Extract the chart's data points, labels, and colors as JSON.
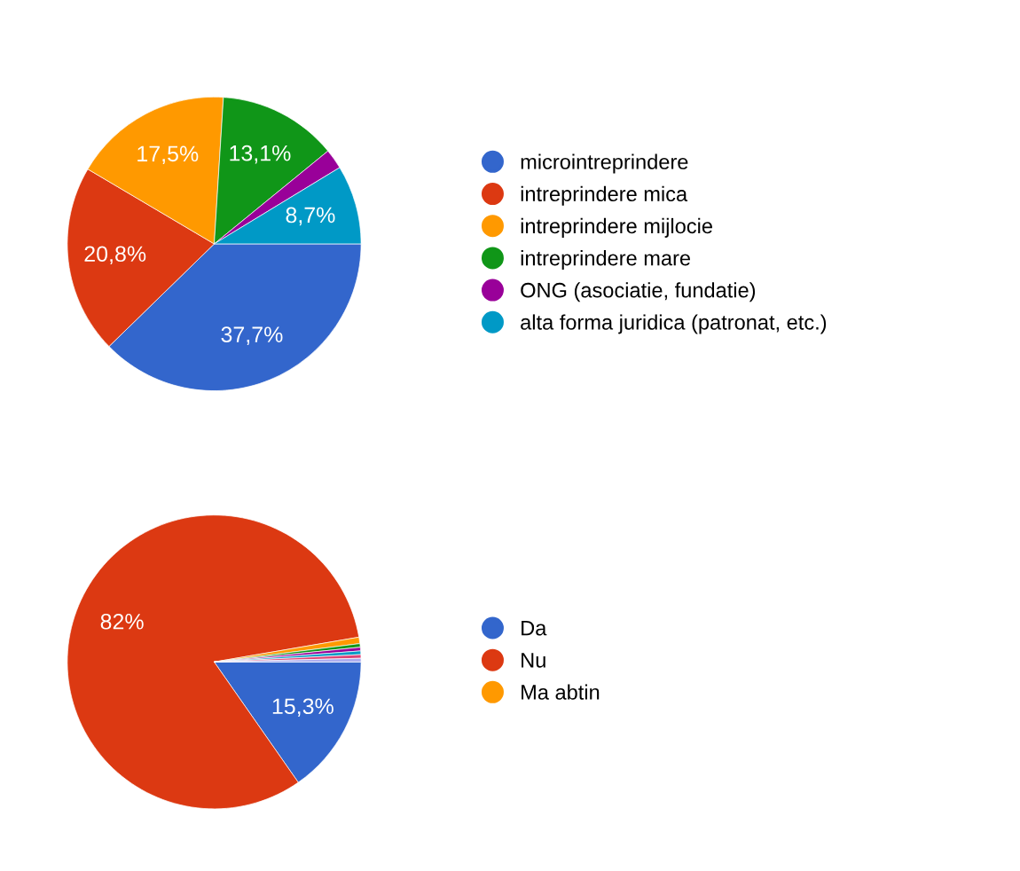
{
  "chart_data": [
    {
      "type": "pie",
      "categories": [
        "microintreprindere",
        "intreprindere mica",
        "intreprindere mijlocie",
        "intreprindere mare",
        "ONG (asociatie, fundatie)",
        "alta forma juridica (patronat, etc.)"
      ],
      "values": [
        37.7,
        20.8,
        17.5,
        13.1,
        2.2,
        8.7
      ],
      "value_labels": [
        "37,7%",
        "20,8%",
        "17,5%",
        "13,1%",
        null,
        "8,7%"
      ],
      "colors": [
        "#3366cc",
        "#dc3912",
        "#ff9900",
        "#109618",
        "#990099",
        "#0099c6"
      ],
      "legend": "right"
    },
    {
      "type": "pie",
      "categories": [
        "Da",
        "Nu",
        "Ma abtin",
        null,
        null,
        null,
        null,
        null
      ],
      "values": [
        15.3,
        82,
        0.7,
        0.4,
        0.4,
        0.4,
        0.4,
        0.4
      ],
      "value_labels": [
        "15,3%",
        "82%",
        null,
        null,
        null,
        null,
        null,
        null
      ],
      "colors": [
        "#3366cc",
        "#dc3912",
        "#ff9900",
        "#109618",
        "#990099",
        "#0099c6",
        "#dd4477",
        "#aaaaee"
      ],
      "legend": "right"
    }
  ]
}
